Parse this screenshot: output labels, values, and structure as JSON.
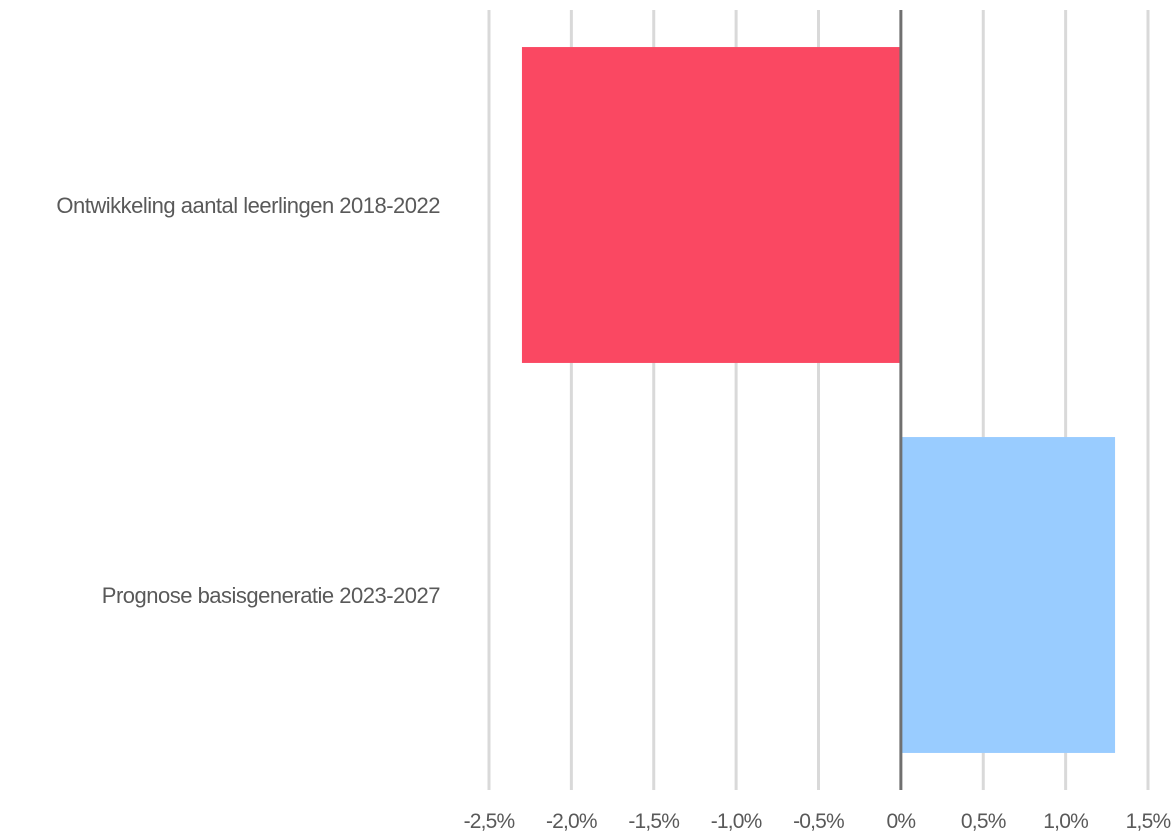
{
  "chart_data": {
    "type": "bar",
    "orientation": "horizontal",
    "categories": [
      "Ontwikkeling aantal leerlingen 2018-2022",
      "Prognose basisgeneratie 2023-2027"
    ],
    "values": [
      -2.3,
      1.3
    ],
    "bar_colors": [
      "#fa4862",
      "#99ccff"
    ],
    "xlim": [
      -2.5,
      1.5
    ],
    "xticks": [
      -2.5,
      -2.0,
      -1.5,
      -1.0,
      -0.5,
      0,
      0.5,
      1.0,
      1.5
    ],
    "xtick_labels": [
      "-2,5%",
      "-2,0%",
      "-1,5%",
      "-1,0%",
      "-0,5%",
      "0%",
      "0,5%",
      "1,0%",
      "1,5%"
    ],
    "grid": "vertical",
    "legend": "none",
    "title": "",
    "xlabel": "",
    "ylabel": ""
  }
}
